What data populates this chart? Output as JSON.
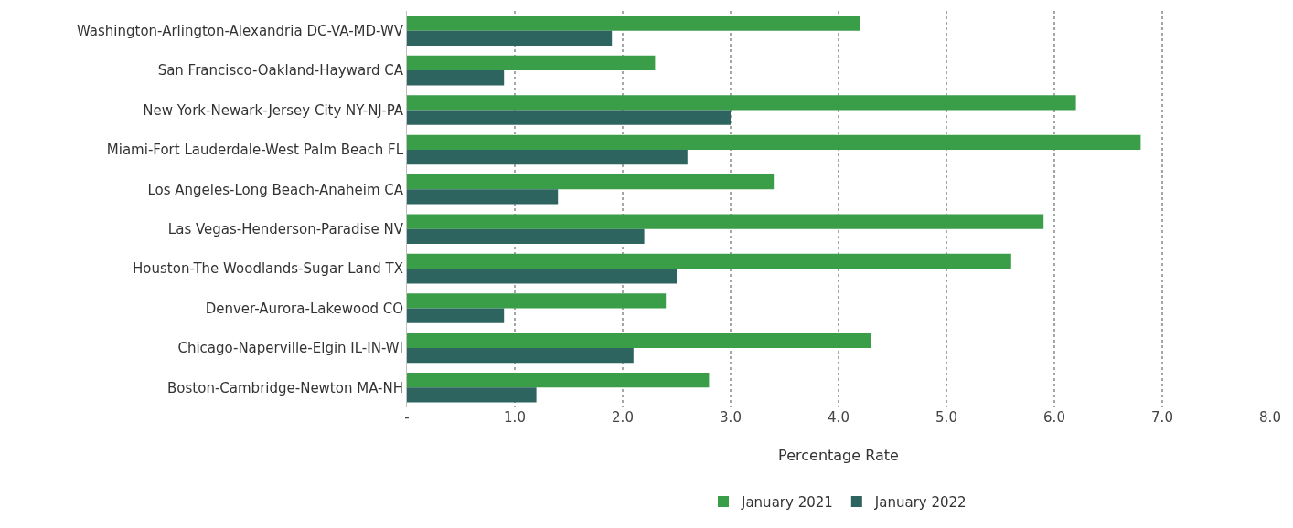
{
  "chart_data": {
    "type": "bar",
    "orientation": "horizontal",
    "xlabel": "Percentage Rate",
    "categories": [
      "Washington-Arlington-Alexandria DC-VA-MD-WV",
      "San Francisco-Oakland-Hayward CA",
      "New York-Newark-Jersey City NY-NJ-PA",
      "Miami-Fort Lauderdale-West Palm Beach FL",
      "Los Angeles-Long Beach-Anaheim CA",
      "Las Vegas-Henderson-Paradise NV",
      "Houston-The Woodlands-Sugar Land TX",
      "Denver-Aurora-Lakewood CO",
      "Chicago-Naperville-Elgin IL-IN-WI",
      "Boston-Cambridge-Newton MA-NH"
    ],
    "series": [
      {
        "name": "January 2021",
        "color": "#3a9e48",
        "values": [
          4.2,
          2.3,
          6.2,
          6.8,
          3.4,
          5.9,
          5.6,
          2.4,
          4.3,
          2.8
        ]
      },
      {
        "name": "January 2022",
        "color": "#2e6460",
        "values": [
          1.9,
          0.9,
          3.0,
          2.6,
          1.4,
          2.2,
          2.5,
          0.9,
          2.1,
          1.2
        ]
      }
    ],
    "xlim": [
      0,
      8
    ],
    "xticks": [
      {
        "value": 0,
        "label": "-"
      },
      {
        "value": 1,
        "label": "1.0"
      },
      {
        "value": 2,
        "label": "2.0"
      },
      {
        "value": 3,
        "label": "3.0"
      },
      {
        "value": 4,
        "label": "4.0"
      },
      {
        "value": 5,
        "label": "5.0"
      },
      {
        "value": 6,
        "label": "6.0"
      },
      {
        "value": 7,
        "label": "7.0"
      },
      {
        "value": 8,
        "label": "8.0"
      }
    ],
    "grid": "x",
    "legend": "bottom"
  }
}
